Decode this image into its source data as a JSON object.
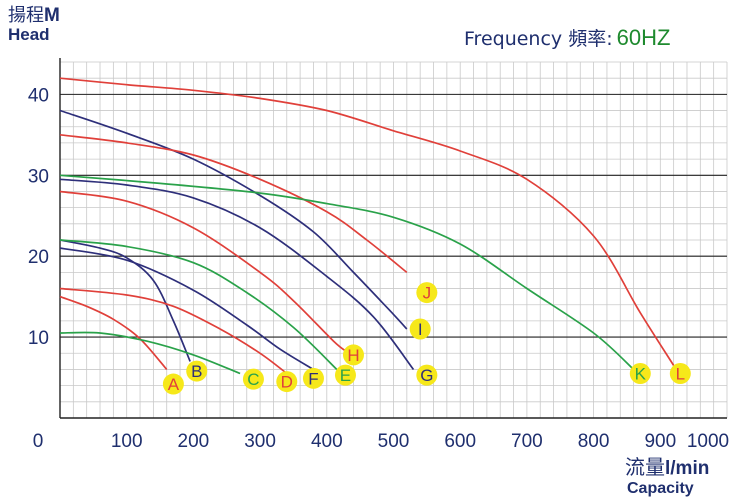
{
  "chart_data": {
    "type": "line",
    "title": "",
    "ylabel_cjk": "揚程",
    "ylabel_unit": "M",
    "ylabel_en": "Head",
    "xlabel_cjk": "流量",
    "xlabel_unit": "l/min",
    "xlabel_en": "Capacity",
    "frequency_label": "Frequency 頻率:",
    "frequency_value": "60HZ",
    "xlim": [
      0,
      1000
    ],
    "ylim": [
      0,
      44
    ],
    "xticks": [
      "0",
      "100",
      "200",
      "300",
      "400",
      "500",
      "600",
      "700",
      "800",
      "900",
      "1000"
    ],
    "yticks": [
      "10",
      "20",
      "30",
      "40"
    ],
    "ytick_values": [
      10,
      20,
      30,
      40
    ],
    "grid": true,
    "colors": {
      "red": "#e0403a",
      "blue": "#2e2f7a",
      "green": "#2aa24a",
      "axis_text": "#1f2f6e",
      "badge": "#f6e81a"
    },
    "series": [
      {
        "name": "A",
        "color": "red",
        "label_at": [
          170,
          4.2
        ],
        "points": [
          [
            0,
            15
          ],
          [
            40,
            13.8
          ],
          [
            80,
            12.2
          ],
          [
            120,
            9.8
          ],
          [
            160,
            6
          ]
        ]
      },
      {
        "name": "B",
        "color": "blue",
        "label_at": [
          205,
          5.8
        ],
        "points": [
          [
            0,
            22
          ],
          [
            60,
            21
          ],
          [
            100,
            19.8
          ],
          [
            140,
            17
          ],
          [
            170,
            12
          ],
          [
            195,
            7
          ]
        ]
      },
      {
        "name": "C",
        "color": "green",
        "label_at": [
          290,
          4.8
        ],
        "points": [
          [
            0,
            10.5
          ],
          [
            60,
            10.5
          ],
          [
            130,
            9.5
          ],
          [
            200,
            7.8
          ],
          [
            270,
            5.5
          ]
        ]
      },
      {
        "name": "D",
        "color": "red",
        "label_at": [
          340,
          4.5
        ],
        "points": [
          [
            0,
            16
          ],
          [
            100,
            15.2
          ],
          [
            170,
            13.8
          ],
          [
            240,
            11
          ],
          [
            300,
            8
          ],
          [
            340,
            5.5
          ]
        ]
      },
      {
        "name": "E",
        "color": "green",
        "label_at": [
          428,
          5.3
        ],
        "points": [
          [
            0,
            22
          ],
          [
            100,
            21.2
          ],
          [
            200,
            19.2
          ],
          [
            280,
            15.5
          ],
          [
            350,
            11.2
          ],
          [
            415,
            6
          ]
        ]
      },
      {
        "name": "F",
        "color": "blue",
        "label_at": [
          380,
          4.9
        ],
        "points": [
          [
            0,
            21
          ],
          [
            100,
            19.5
          ],
          [
            200,
            15.8
          ],
          [
            280,
            11.5
          ],
          [
            330,
            8.5
          ],
          [
            380,
            6
          ]
        ]
      },
      {
        "name": "G",
        "color": "blue",
        "label_at": [
          550,
          5.3
        ],
        "points": [
          [
            0,
            29.5
          ],
          [
            100,
            28.8
          ],
          [
            200,
            27.2
          ],
          [
            300,
            23.5
          ],
          [
            400,
            17.5
          ],
          [
            470,
            12.5
          ],
          [
            530,
            6
          ]
        ]
      },
      {
        "name": "H",
        "color": "red",
        "label_at": [
          440,
          7.8
        ],
        "points": [
          [
            0,
            28
          ],
          [
            100,
            26.8
          ],
          [
            200,
            23.5
          ],
          [
            300,
            18
          ],
          [
            350,
            14.5
          ],
          [
            410,
            9.5
          ],
          [
            430,
            8.2
          ]
        ]
      },
      {
        "name": "I",
        "color": "blue",
        "label_at": [
          540,
          11
        ],
        "points": [
          [
            0,
            38
          ],
          [
            100,
            35.2
          ],
          [
            200,
            32
          ],
          [
            300,
            27.5
          ],
          [
            380,
            23
          ],
          [
            440,
            18
          ],
          [
            500,
            12.8
          ],
          [
            520,
            11
          ]
        ]
      },
      {
        "name": "J",
        "color": "red",
        "label_at": [
          550,
          15.5
        ],
        "points": [
          [
            0,
            35
          ],
          [
            100,
            34
          ],
          [
            200,
            32.5
          ],
          [
            300,
            29.5
          ],
          [
            400,
            25.5
          ],
          [
            460,
            22
          ],
          [
            520,
            18
          ]
        ]
      },
      {
        "name": "K",
        "color": "green",
        "label_at": [
          870,
          5.5
        ],
        "points": [
          [
            0,
            30
          ],
          [
            150,
            29
          ],
          [
            300,
            27.8
          ],
          [
            400,
            26.5
          ],
          [
            500,
            24.8
          ],
          [
            600,
            21.5
          ],
          [
            700,
            16
          ],
          [
            800,
            10.5
          ],
          [
            860,
            6
          ]
        ]
      },
      {
        "name": "L",
        "color": "red",
        "label_at": [
          930,
          5.5
        ],
        "points": [
          [
            0,
            42
          ],
          [
            100,
            41.2
          ],
          [
            200,
            40.5
          ],
          [
            300,
            39.5
          ],
          [
            400,
            38
          ],
          [
            500,
            35.5
          ],
          [
            600,
            33
          ],
          [
            700,
            29.5
          ],
          [
            800,
            22.5
          ],
          [
            870,
            13
          ],
          [
            920,
            6.5
          ]
        ]
      }
    ]
  }
}
